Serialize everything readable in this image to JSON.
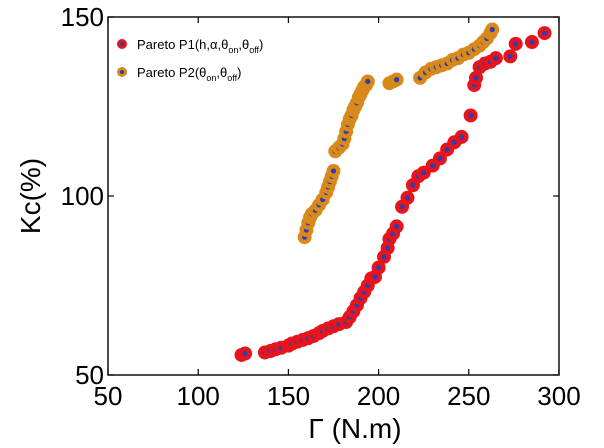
{
  "chart_data": {
    "type": "scatter",
    "xlabel": "Γ (N.m)",
    "ylabel": "Kc(%)",
    "xlim": [
      50,
      300
    ],
    "ylim": [
      50,
      150
    ],
    "xticks": [
      "50",
      "100",
      "150",
      "200",
      "250",
      "300"
    ],
    "yticks": [
      "50",
      "100",
      "150"
    ],
    "grid": false,
    "legend_position": "top-left",
    "series": [
      {
        "name": "Pareto P1(h,α,θon,θoff)",
        "legend_base": "Pareto P1(h,α,θ",
        "legend_parts": [
          "on",
          ",θ",
          "off",
          ")"
        ],
        "marker_outer_color": "#e8141c",
        "marker_inner_color": "#2e3fa8",
        "x": [
          124,
          126,
          137,
          140,
          143,
          146,
          150,
          152,
          155,
          158,
          161,
          164,
          167,
          169,
          172,
          175,
          178,
          182,
          184,
          186,
          188,
          190,
          192,
          194,
          196,
          198,
          200,
          203,
          205,
          206,
          208,
          210,
          213,
          216,
          219,
          222,
          225,
          230,
          234,
          238,
          242,
          246,
          251,
          253,
          254,
          256,
          259,
          262,
          265,
          273,
          276,
          285,
          292
        ],
        "y": [
          55.6,
          56,
          56.3,
          56.7,
          57.2,
          57.6,
          58.2,
          58.8,
          59.3,
          59.8,
          60.3,
          60.9,
          61.7,
          62.3,
          63,
          63.6,
          64.2,
          64.8,
          66.2,
          67.8,
          69.5,
          71.5,
          73.2,
          75,
          77,
          77.4,
          80,
          83,
          85.5,
          88,
          89.5,
          91.5,
          97,
          99.5,
          103,
          105.5,
          106.5,
          108.5,
          110.5,
          113,
          115,
          116.5,
          122.5,
          131,
          133,
          136,
          137,
          137.5,
          138.5,
          139,
          142.5,
          143,
          145.5
        ]
      },
      {
        "name": "Pareto P2(θon,θoff)",
        "legend_base": "Pareto P2(θ",
        "legend_parts": [
          "on",
          ",θ",
          "off",
          ")"
        ],
        "marker_outer_color": "#d9891a",
        "marker_inner_color": "#2e3fa8",
        "x": [
          159,
          160,
          161,
          162,
          163,
          165,
          167,
          169,
          171,
          172,
          173,
          174,
          175,
          176,
          178,
          180,
          181,
          182,
          183,
          184,
          185,
          186,
          187,
          188,
          189,
          190,
          191,
          192,
          193,
          194,
          206,
          208,
          210,
          223,
          226,
          229,
          232,
          235,
          238,
          241,
          244,
          247,
          250,
          253,
          256,
          258,
          260,
          262,
          263
        ],
        "y": [
          88.5,
          90.5,
          92.5,
          94,
          95,
          96,
          97.5,
          99,
          101,
          102.5,
          104,
          105.5,
          107,
          112.5,
          113.5,
          114.5,
          116,
          118,
          120,
          121.5,
          122.5,
          124,
          125,
          126,
          127.5,
          128.5,
          129.5,
          130.5,
          131,
          132,
          131.5,
          132,
          132.5,
          133,
          134.5,
          135.5,
          136,
          136.5,
          137,
          138,
          138.5,
          139.5,
          140,
          141,
          142,
          143,
          144,
          145.5,
          146.5
        ]
      }
    ]
  }
}
